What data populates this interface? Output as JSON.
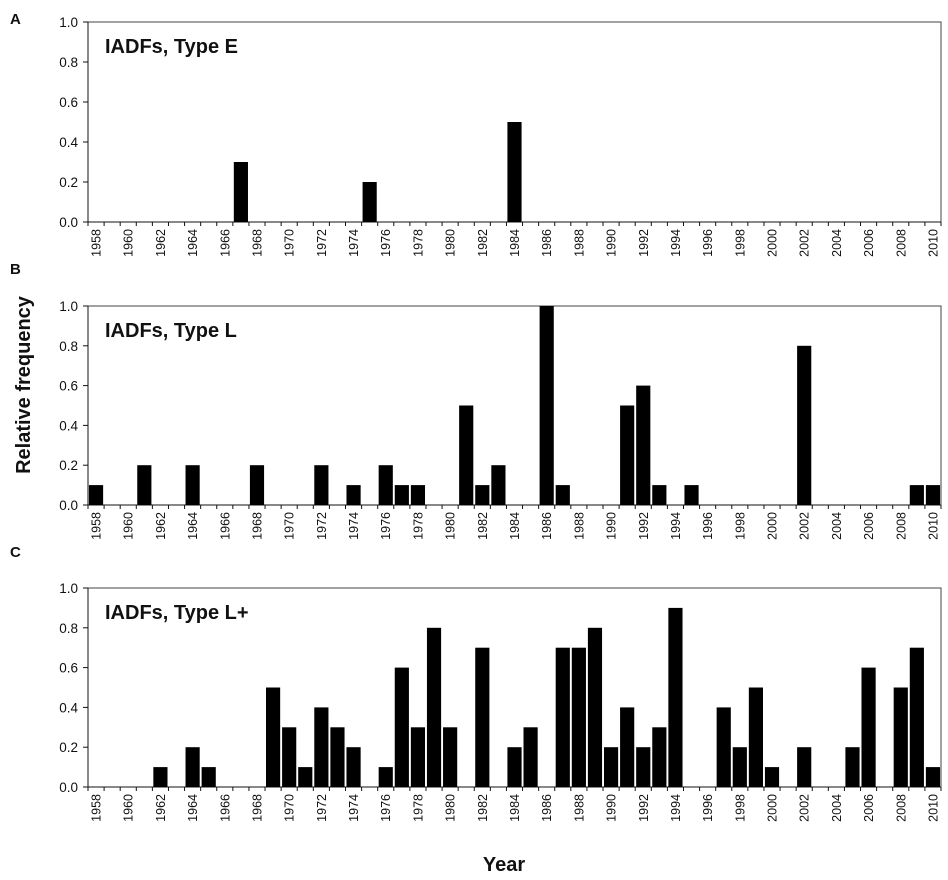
{
  "figure": {
    "xlabel": "Year",
    "ylabel": "Relative frequency"
  },
  "chart_data": [
    {
      "type": "bar",
      "panel": "A",
      "title": "IADFs, Type E",
      "ylim": [
        0,
        1.0
      ],
      "yticks": [
        "0.0",
        "0.2",
        "0.4",
        "0.6",
        "0.8",
        "1.0"
      ],
      "tick_labels": [
        "1958",
        "1960",
        "1962",
        "1964",
        "1966",
        "1968",
        "1970",
        "1972",
        "1974",
        "1976",
        "1978",
        "1980",
        "1982",
        "1984",
        "1986",
        "1988",
        "1990",
        "1992",
        "1994",
        "1996",
        "1998",
        "2000",
        "2002",
        "2004",
        "2006",
        "2008",
        "2010"
      ],
      "x": [
        1967,
        1975,
        1984
      ],
      "values": [
        0.3,
        0.2,
        0.5
      ]
    },
    {
      "type": "bar",
      "panel": "B",
      "title": "IADFs, Type L",
      "ylim": [
        0,
        1.0
      ],
      "yticks": [
        "0.0",
        "0.2",
        "0.4",
        "0.6",
        "0.8",
        "1.0"
      ],
      "tick_labels": [
        "1958",
        "1960",
        "1962",
        "1964",
        "1966",
        "1968",
        "1970",
        "1972",
        "1974",
        "1976",
        "1978",
        "1980",
        "1982",
        "1984",
        "1986",
        "1988",
        "1990",
        "1992",
        "1994",
        "1996",
        "1998",
        "2000",
        "2002",
        "2004",
        "2006",
        "2008",
        "2010"
      ],
      "x": [
        1958,
        1961,
        1964,
        1968,
        1972,
        1974,
        1976,
        1977,
        1978,
        1981,
        1982,
        1983,
        1986,
        1987,
        1991,
        1992,
        1993,
        1995,
        2002,
        2009,
        2010
      ],
      "values": [
        0.1,
        0.2,
        0.2,
        0.2,
        0.2,
        0.1,
        0.2,
        0.1,
        0.1,
        0.5,
        0.1,
        0.2,
        1.0,
        0.1,
        0.5,
        0.6,
        0.1,
        0.1,
        0.8,
        0.1,
        0.1
      ]
    },
    {
      "type": "bar",
      "panel": "C",
      "title": "IADFs, Type L+",
      "ylim": [
        0,
        1.0
      ],
      "yticks": [
        "0.0",
        "0.2",
        "0.4",
        "0.6",
        "0.8",
        "1.0"
      ],
      "tick_labels": [
        "1958",
        "1960",
        "1962",
        "1964",
        "1966",
        "1968",
        "1970",
        "1972",
        "1974",
        "1976",
        "1978",
        "1980",
        "1982",
        "1984",
        "1986",
        "1988",
        "1990",
        "1992",
        "1994",
        "1996",
        "1998",
        "2000",
        "2002",
        "2004",
        "2006",
        "2008",
        "2010"
      ],
      "x": [
        1962,
        1964,
        1965,
        1969,
        1970,
        1971,
        1972,
        1973,
        1974,
        1976,
        1977,
        1978,
        1979,
        1980,
        1982,
        1984,
        1985,
        1987,
        1988,
        1989,
        1990,
        1991,
        1992,
        1993,
        1994,
        1997,
        1998,
        1999,
        2000,
        2002,
        2005,
        2006,
        2008,
        2009,
        2010
      ],
      "values": [
        0.1,
        0.2,
        0.1,
        0.5,
        0.3,
        0.1,
        0.4,
        0.3,
        0.2,
        0.1,
        0.6,
        0.3,
        0.8,
        0.3,
        0.7,
        0.2,
        0.3,
        0.7,
        0.7,
        0.8,
        0.2,
        0.4,
        0.2,
        0.3,
        0.9,
        0.4,
        0.2,
        0.5,
        0.1,
        0.2,
        0.2,
        0.6,
        0.5,
        0.7,
        0.1
      ]
    }
  ]
}
